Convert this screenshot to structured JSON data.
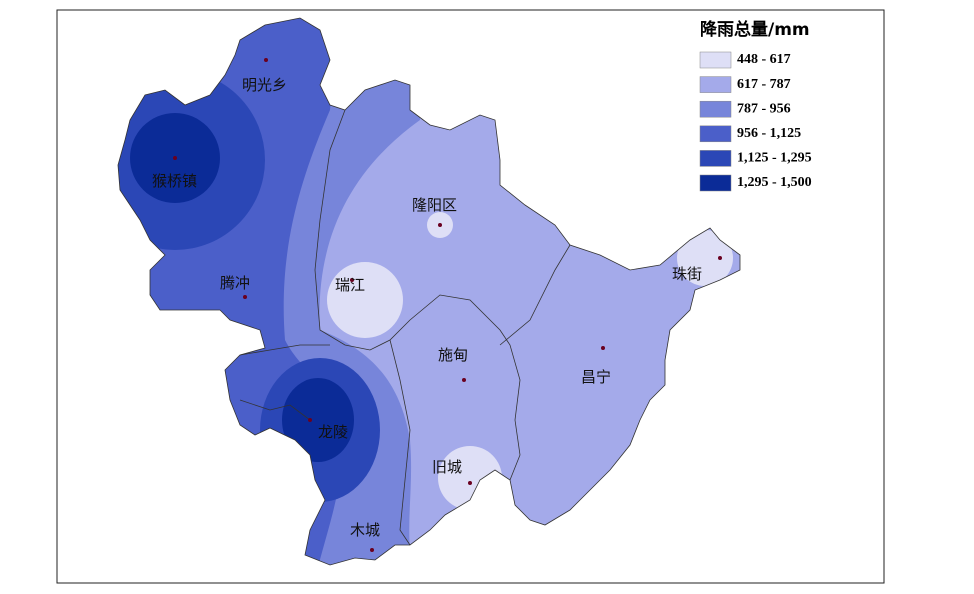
{
  "legend": {
    "title": "降雨总量/mm",
    "classes": [
      {
        "label": "448 - 617",
        "color": "#dedff6"
      },
      {
        "label": "617 - 787",
        "color": "#a4aaea"
      },
      {
        "label": "787 - 956",
        "color": "#7785da"
      },
      {
        "label": "956 - 1,125",
        "color": "#4b5fc9"
      },
      {
        "label": "1,125 - 1,295",
        "color": "#2b47b6"
      },
      {
        "label": "1,295 - 1,500",
        "color": "#0b2b97"
      }
    ]
  },
  "places": [
    {
      "name": "明光乡"
    },
    {
      "name": "猴桥镇"
    },
    {
      "name": "腾冲"
    },
    {
      "name": "隆阳区"
    },
    {
      "name": "瑞江"
    },
    {
      "name": "施甸"
    },
    {
      "name": "珠街"
    },
    {
      "name": "昌宁"
    },
    {
      "name": "龙陵"
    },
    {
      "name": "旧城"
    },
    {
      "name": "木城"
    }
  ]
}
